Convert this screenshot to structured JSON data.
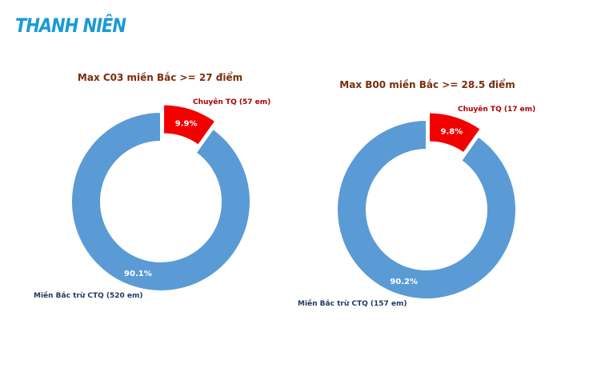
{
  "brand": {
    "logo_text": "THANH NIÊN",
    "logo_color": "#1a9ad6"
  },
  "colors": {
    "highlight": "#f20000",
    "base": "#5b9bd5",
    "title": "#7a2e0e",
    "highlight_label": "#a80000",
    "base_label": "#1f3b63"
  },
  "chart_data": [
    {
      "type": "pie",
      "title": "Max C03 miền Bắc >= 27 điểm",
      "slices": [
        {
          "label": "Chuyên TQ (57 em)",
          "value": 9.9,
          "pct_label": "9.9%",
          "color": "#f20000",
          "explode": true
        },
        {
          "label": "Miền Bắc trừ CTQ (520 em)",
          "value": 90.1,
          "pct_label": "90.1%",
          "color": "#5b9bd5",
          "explode": false
        }
      ],
      "donut": true
    },
    {
      "type": "pie",
      "title": "Max B00 miền Bắc >= 28.5 điểm",
      "slices": [
        {
          "label": "Chuyên TQ (17 em)",
          "value": 9.8,
          "pct_label": "9.8%",
          "color": "#f20000",
          "explode": true
        },
        {
          "label": "Miền Bắc trừ CTQ (157 em)",
          "value": 90.2,
          "pct_label": "90.2%",
          "color": "#5b9bd5",
          "explode": false
        }
      ],
      "donut": true
    }
  ]
}
